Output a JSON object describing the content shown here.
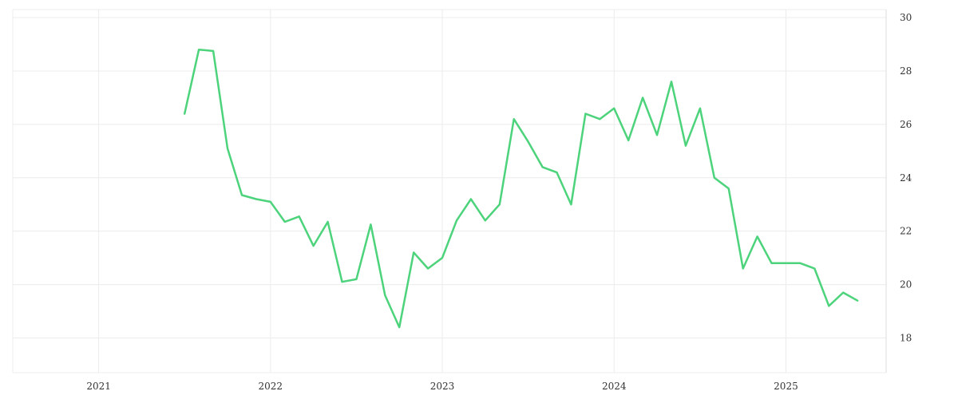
{
  "chart_data": {
    "type": "line",
    "title": "",
    "xlabel": "",
    "ylabel": "",
    "x_ticks": [
      "2021",
      "2022",
      "2023",
      "2024",
      "2025"
    ],
    "y_ticks": [
      18,
      20,
      22,
      24,
      26,
      28,
      30
    ],
    "xlim": [
      "2020-07",
      "2025-08"
    ],
    "ylim": [
      16.7,
      30.3
    ],
    "y_axis_side": "right",
    "grid": true,
    "legend": "none",
    "series": [
      {
        "color": "#4cd37b",
        "points": [
          [
            "2021-07",
            26.4
          ],
          [
            "2021-08",
            28.8
          ],
          [
            "2021-09",
            28.75
          ],
          [
            "2021-10",
            25.1
          ],
          [
            "2021-11",
            23.35
          ],
          [
            "2021-12",
            23.2
          ],
          [
            "2022-01",
            23.1
          ],
          [
            "2022-02",
            22.35
          ],
          [
            "2022-03",
            22.55
          ],
          [
            "2022-04",
            21.45
          ],
          [
            "2022-05",
            22.35
          ],
          [
            "2022-06",
            20.1
          ],
          [
            "2022-07",
            20.2
          ],
          [
            "2022-08",
            22.25
          ],
          [
            "2022-09",
            19.6
          ],
          [
            "2022-10",
            18.4
          ],
          [
            "2022-11",
            21.2
          ],
          [
            "2022-12",
            20.6
          ],
          [
            "2023-01",
            21.0
          ],
          [
            "2023-02",
            22.4
          ],
          [
            "2023-03",
            23.2
          ],
          [
            "2023-04",
            22.4
          ],
          [
            "2023-05",
            23.0
          ],
          [
            "2023-06",
            26.2
          ],
          [
            "2023-07",
            25.35
          ],
          [
            "2023-08",
            24.4
          ],
          [
            "2023-09",
            24.2
          ],
          [
            "2023-10",
            23.0
          ],
          [
            "2023-11",
            26.4
          ],
          [
            "2023-12",
            26.2
          ],
          [
            "2024-01",
            26.6
          ],
          [
            "2024-02",
            25.4
          ],
          [
            "2024-03",
            27.0
          ],
          [
            "2024-04",
            25.6
          ],
          [
            "2024-05",
            27.6
          ],
          [
            "2024-06",
            25.2
          ],
          [
            "2024-07",
            26.6
          ],
          [
            "2024-08",
            24.0
          ],
          [
            "2024-09",
            23.6
          ],
          [
            "2024-10",
            20.6
          ],
          [
            "2024-11",
            21.8
          ],
          [
            "2024-12",
            20.8
          ],
          [
            "2025-01",
            20.8
          ],
          [
            "2025-02",
            20.8
          ],
          [
            "2025-03",
            20.6
          ],
          [
            "2025-04",
            19.2
          ],
          [
            "2025-05",
            19.7
          ],
          [
            "2025-06",
            19.4
          ]
        ]
      }
    ]
  }
}
